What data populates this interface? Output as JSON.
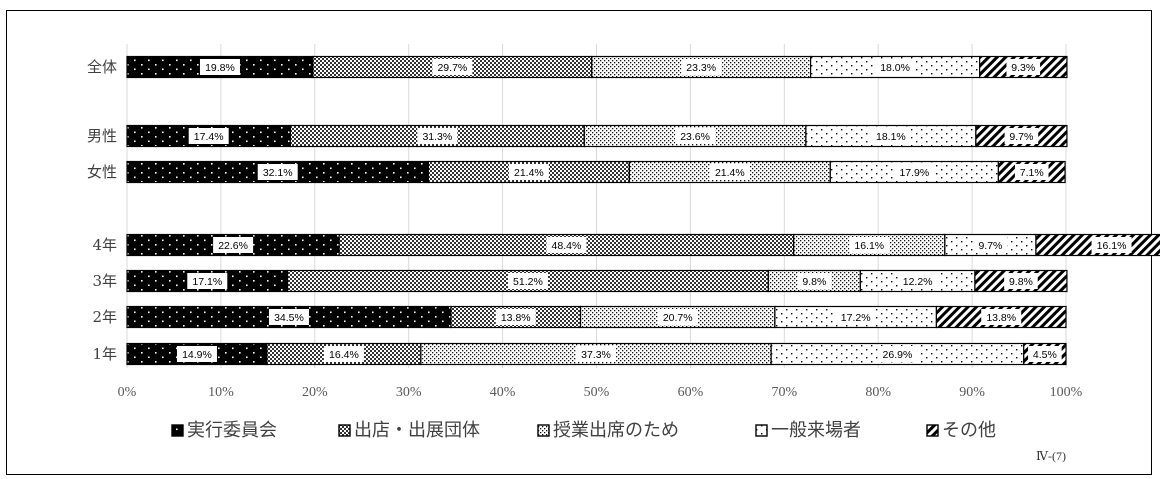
{
  "page_label": "Ⅳ-(7)",
  "chart_data": {
    "type": "bar",
    "orientation": "horizontal",
    "stacked": "percent",
    "categories": [
      "全体",
      "男性",
      "女性",
      "4年",
      "3年",
      "2年",
      "1年"
    ],
    "series": [
      {
        "name": "実行委員会",
        "pattern": "black-dots",
        "values": [
          19.8,
          17.4,
          32.1,
          22.6,
          17.1,
          34.5,
          14.9
        ]
      },
      {
        "name": "出店・出展団体",
        "pattern": "crosshatch",
        "values": [
          29.7,
          31.3,
          21.4,
          48.4,
          51.2,
          13.8,
          16.4
        ]
      },
      {
        "name": "授業出席のため",
        "pattern": "dense-dots",
        "values": [
          23.3,
          23.6,
          21.4,
          16.1,
          9.8,
          20.7,
          37.3
        ]
      },
      {
        "name": "一般来場者",
        "pattern": "sparse-dots",
        "values": [
          18.0,
          18.1,
          17.9,
          9.7,
          12.2,
          17.2,
          26.9
        ]
      },
      {
        "name": "その他",
        "pattern": "diagonal",
        "values": [
          9.3,
          9.7,
          7.1,
          16.1,
          9.8,
          13.8,
          4.5
        ]
      }
    ],
    "data_labels": [
      [
        "19.8%",
        "17.4%",
        "32.1%",
        "22.6%",
        "17.1%",
        "34.5%",
        "14.9%"
      ],
      [
        "29.7%",
        "31.3%",
        "21.4%",
        "48.4%",
        "51.2%",
        "13.8%",
        "16.4%"
      ],
      [
        "23.3%",
        "23.6%",
        "21.4%",
        "16.1%",
        "9.8%",
        "20.7%",
        "37.3%"
      ],
      [
        "18.0%",
        "18.1%",
        "17.9%",
        "9.7%",
        "12.2%",
        "17.2%",
        "26.9%"
      ],
      [
        "9.3%",
        "9.7%",
        "7.1%",
        "16.1%",
        "9.8%",
        "13.8%",
        "4.5%"
      ]
    ],
    "row_groups": [
      [
        0
      ],
      [
        1,
        2
      ],
      [
        3,
        4,
        5,
        6
      ]
    ],
    "x_ticks": [
      "0%",
      "10%",
      "20%",
      "30%",
      "40%",
      "50%",
      "60%",
      "70%",
      "80%",
      "90%",
      "100%"
    ],
    "xlim": [
      0,
      100
    ],
    "grid": true,
    "legend_position": "bottom",
    "title": "",
    "xlabel": "",
    "ylabel": ""
  }
}
